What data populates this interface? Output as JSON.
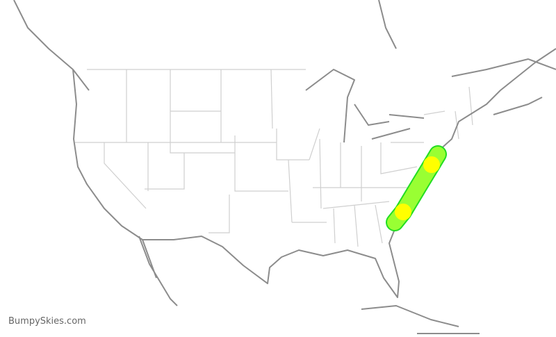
{
  "brand": "BumpySkies.com",
  "route": {
    "colors": {
      "base": "#22dd22",
      "light": "#99ff33",
      "moderate": "#ffff00"
    },
    "segments": [
      {
        "level": "light"
      },
      {
        "level": "moderate"
      },
      {
        "level": "light"
      },
      {
        "level": "moderate"
      },
      {
        "level": "light"
      }
    ]
  },
  "map": {
    "land_stroke": "#8c8c8c",
    "state_stroke": "#cfcfcf"
  }
}
